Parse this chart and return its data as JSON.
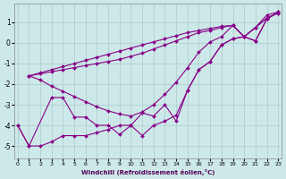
{
  "xlabel": "Windchill (Refroidissement éolien,°C)",
  "background_color": "#cde8e8",
  "line_color": "#880088",
  "x_ticks": [
    0,
    1,
    2,
    3,
    4,
    5,
    6,
    7,
    8,
    9,
    10,
    11,
    12,
    13,
    14,
    15,
    16,
    17,
    18,
    19,
    20,
    21,
    22,
    23
  ],
  "y_ticks": [
    -5,
    -4,
    -3,
    -2,
    -1,
    0,
    1
  ],
  "xlim": [
    -0.3,
    23.3
  ],
  "ylim": [
    -5.6,
    1.9
  ],
  "lines": [
    {
      "x": [
        1,
        2,
        3,
        4,
        5,
        6,
        7,
        8,
        9,
        10,
        11,
        12,
        13,
        14,
        15,
        16,
        17,
        18,
        19,
        20,
        21,
        22,
        23
      ],
      "y": [
        -1.6,
        -1.45,
        -1.3,
        -1.15,
        -1.0,
        -0.85,
        -0.7,
        -0.55,
        -0.4,
        -0.25,
        -0.1,
        0.05,
        0.2,
        0.35,
        0.5,
        0.6,
        0.7,
        0.8,
        0.85,
        0.3,
        0.75,
        1.35,
        1.5
      ],
      "marker": "D",
      "markersize": 2.0,
      "linewidth": 0.8
    },
    {
      "x": [
        1,
        2,
        3,
        4,
        5,
        6,
        7,
        8,
        9,
        10,
        11,
        12,
        13,
        14,
        15,
        16,
        17,
        18,
        19,
        20,
        21,
        22,
        23
      ],
      "y": [
        -1.6,
        -1.5,
        -1.4,
        -1.3,
        -1.2,
        -1.1,
        -1.0,
        -0.9,
        -0.8,
        -0.65,
        -0.5,
        -0.3,
        -0.1,
        0.1,
        0.3,
        0.5,
        0.6,
        0.75,
        0.85,
        0.3,
        0.75,
        1.2,
        1.45
      ],
      "marker": "D",
      "markersize": 2.0,
      "linewidth": 0.8
    },
    {
      "x": [
        1,
        2,
        3,
        4,
        5,
        6,
        7,
        8,
        9,
        10,
        11,
        12,
        13,
        14,
        15,
        16,
        17,
        18,
        19,
        20,
        21,
        22,
        23
      ],
      "y": [
        -1.6,
        -1.8,
        -2.1,
        -2.35,
        -2.6,
        -2.85,
        -3.1,
        -3.3,
        -3.45,
        -3.55,
        -3.35,
        -3.0,
        -2.5,
        -1.9,
        -1.2,
        -0.45,
        0.05,
        0.3,
        0.85,
        0.3,
        0.75,
        1.2,
        1.45
      ],
      "marker": "D",
      "markersize": 2.0,
      "linewidth": 0.8
    },
    {
      "x": [
        0,
        1,
        3,
        4,
        5,
        6,
        7,
        8,
        9,
        10,
        11,
        12,
        13,
        14,
        15,
        16,
        17,
        18,
        19,
        20,
        21,
        22,
        23
      ],
      "y": [
        -4.0,
        -5.0,
        -2.65,
        -2.65,
        -3.6,
        -3.6,
        -4.0,
        -4.0,
        -4.45,
        -4.0,
        -3.4,
        -3.55,
        -3.0,
        -3.8,
        -2.3,
        -1.3,
        -0.9,
        -0.1,
        0.2,
        0.3,
        0.1,
        1.15,
        1.5
      ],
      "marker": "D",
      "markersize": 2.0,
      "linewidth": 0.8
    },
    {
      "x": [
        0,
        1,
        2,
        3,
        4,
        5,
        6,
        7,
        8,
        9,
        10,
        11,
        12,
        13,
        14,
        15,
        16,
        17,
        18,
        19,
        20,
        21,
        22,
        23
      ],
      "y": [
        -4.0,
        -5.0,
        -5.0,
        -4.8,
        -4.5,
        -4.5,
        -4.5,
        -4.35,
        -4.2,
        -4.0,
        -4.0,
        -4.5,
        -4.0,
        -3.8,
        -3.5,
        -2.3,
        -1.3,
        -0.9,
        -0.1,
        0.2,
        0.3,
        0.1,
        1.15,
        1.5
      ],
      "marker": "D",
      "markersize": 2.0,
      "linewidth": 0.8
    }
  ]
}
